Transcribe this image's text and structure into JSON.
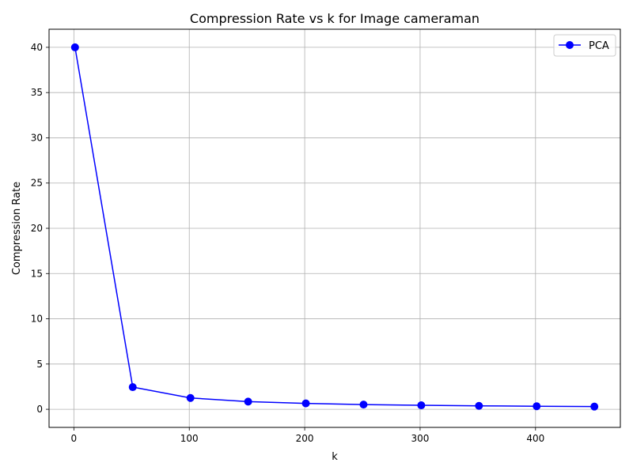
{
  "chart_data": {
    "type": "line",
    "title": "Compression Rate vs k for Image cameraman",
    "xlabel": "k",
    "ylabel": "Compression Rate",
    "xlim": [
      -21.5,
      473.5
    ],
    "ylim": [
      -2.0,
      42.0
    ],
    "xticks": [
      0,
      100,
      200,
      300,
      400
    ],
    "yticks": [
      0,
      5,
      10,
      15,
      20,
      25,
      30,
      35,
      40
    ],
    "grid": true,
    "legend_position": "top-right",
    "series": [
      {
        "name": "PCA",
        "color": "#0000ff",
        "marker": "circle",
        "x": [
          1,
          51,
          101,
          151,
          201,
          251,
          301,
          351,
          401,
          451
        ],
        "y": [
          40.0,
          2.45,
          1.25,
          0.85,
          0.65,
          0.52,
          0.44,
          0.38,
          0.34,
          0.3
        ]
      }
    ]
  }
}
